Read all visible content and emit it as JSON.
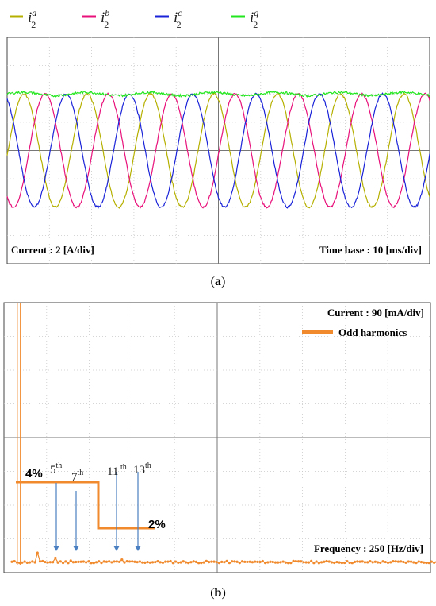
{
  "chart_data": [
    {
      "type": "line",
      "panel_label": "a",
      "legend": [
        {
          "name": "i",
          "sub": "2",
          "sup": "a",
          "color": "#b5b000"
        },
        {
          "name": "i",
          "sub": "2",
          "sup": "b",
          "color": "#e8107a"
        },
        {
          "name": "i",
          "sub": "2",
          "sup": "c",
          "color": "#1a23d8"
        },
        {
          "name": "i",
          "sub": "2",
          "sup": "q",
          "color": "#22e61e"
        }
      ],
      "scale_label": "Current : 2 [A/div]",
      "timebase_label": "Time base : 10 [ms/div]",
      "grid": {
        "x_divisions": 10,
        "y_divisions": 8
      },
      "x_unit": "ms",
      "x_range_ms": [
        0,
        100
      ],
      "y_range_div": [
        -4,
        4
      ],
      "series": [
        {
          "key": "a",
          "amplitude_div": 2.0,
          "frequency_hz": 66.7,
          "phase_deg": -5
        },
        {
          "key": "b",
          "amplitude_div": 2.0,
          "frequency_hz": 66.7,
          "phase_deg": -125
        },
        {
          "key": "c",
          "amplitude_div": 2.0,
          "frequency_hz": 66.7,
          "phase_deg": 115
        },
        {
          "key": "q",
          "level_div": 2.0
        }
      ]
    },
    {
      "type": "line",
      "panel_label": "b",
      "scale_label": "Current : 90 [mA/div]",
      "legend_label": "Odd harmonics",
      "legend_color": "#f08a2d",
      "frequency_label": "Frequency : 250 [Hz/div]",
      "grid": {
        "x_divisions": 10,
        "y_divisions": 8
      },
      "harmonic_labels": [
        {
          "order": "5",
          "sup": "th"
        },
        {
          "order": "7",
          "sup": "th"
        },
        {
          "order": "11",
          "sup": " th"
        },
        {
          "order": "13",
          "sup": "th"
        }
      ],
      "limit_labels": [
        "4%",
        "2%"
      ],
      "limits_percent": [
        4,
        2
      ],
      "spectrum_peaks": [
        {
          "harmonic": 1,
          "value_div": 8.0
        },
        {
          "harmonic": 3,
          "value_div": 0.35
        },
        {
          "harmonic": 5,
          "value_div": 0.2
        },
        {
          "harmonic": 7,
          "value_div": 0.12
        },
        {
          "harmonic": 11,
          "value_div": 0.08
        },
        {
          "harmonic": 13,
          "value_div": 0.15
        }
      ]
    }
  ]
}
